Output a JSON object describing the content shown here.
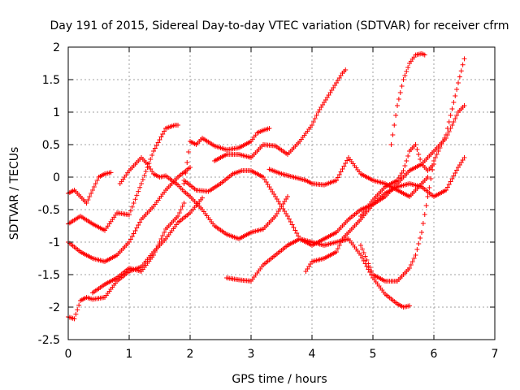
{
  "chart_data": {
    "type": "scatter",
    "title": "Day 191 of 2015, Sidereal Day-to-day VTEC variation (SDTVAR) for receiver cfrm",
    "xlabel": "GPS time / hours",
    "ylabel": "SDTVAR / TECUs",
    "xlim": [
      0,
      7
    ],
    "ylim": [
      -2.5,
      2
    ],
    "xticks": [
      "0",
      "1",
      "2",
      "3",
      "4",
      "5",
      "6",
      "7"
    ],
    "yticks": [
      "-2.5",
      "-2",
      "-1.5",
      "-1",
      "-0.5",
      "0",
      "0.5",
      "1",
      "1.5",
      "2"
    ],
    "xtick_values": [
      0,
      1,
      2,
      3,
      4,
      5,
      6,
      7
    ],
    "ytick_values": [
      -2.5,
      -2,
      -1.5,
      -1,
      -0.5,
      0,
      0.5,
      1,
      1.5,
      2
    ],
    "grid": true,
    "marker": "+",
    "color": "#ff0000",
    "series": [
      {
        "name": "s1",
        "x": [
          0.0,
          0.1,
          0.2,
          0.3,
          0.4,
          0.5,
          0.6,
          0.7
        ],
        "y": [
          -0.25,
          -0.2,
          -0.3,
          -0.4,
          -0.2,
          0.0,
          0.05,
          0.07
        ]
      },
      {
        "name": "s2",
        "x": [
          0.0,
          0.2,
          0.4,
          0.6,
          0.8,
          1.0,
          1.2,
          1.4,
          1.6,
          1.75,
          1.8
        ],
        "y": [
          -0.72,
          -0.6,
          -0.72,
          -0.82,
          -0.55,
          -0.58,
          -0.1,
          0.4,
          0.75,
          0.8,
          0.8
        ]
      },
      {
        "name": "s3",
        "x": [
          0.0,
          0.2,
          0.4,
          0.6,
          0.8,
          1.0,
          1.2,
          1.4,
          1.6,
          1.8,
          2.0
        ],
        "y": [
          -1.0,
          -1.15,
          -1.25,
          -1.3,
          -1.2,
          -1.0,
          -0.65,
          -0.45,
          -0.2,
          0.0,
          0.15
        ]
      },
      {
        "name": "s4",
        "x": [
          0.0,
          0.1,
          0.2,
          0.3,
          0.4,
          0.6,
          0.8,
          1.0,
          1.2,
          1.4,
          1.6,
          1.8,
          2.0,
          2.2
        ],
        "y": [
          -2.15,
          -2.18,
          -1.9,
          -1.85,
          -1.88,
          -1.85,
          -1.6,
          -1.45,
          -1.38,
          -1.15,
          -0.95,
          -0.7,
          -0.55,
          -0.32
        ]
      },
      {
        "name": "s5",
        "x": [
          0.4,
          0.6,
          0.8,
          1.0,
          1.2,
          1.4,
          1.6,
          1.8,
          1.9
        ],
        "y": [
          -1.78,
          -1.65,
          -1.55,
          -1.4,
          -1.45,
          -1.2,
          -0.8,
          -0.6,
          -0.4
        ]
      },
      {
        "name": "s6",
        "x": [
          0.85,
          1.0,
          1.2,
          1.3,
          1.4,
          1.5,
          1.6,
          1.7,
          1.8,
          1.9,
          2.0,
          2.2,
          2.4,
          2.6,
          2.8,
          3.0,
          3.2,
          3.4,
          3.6
        ],
        "y": [
          -0.1,
          0.1,
          0.3,
          0.2,
          0.05,
          0.0,
          0.02,
          -0.05,
          -0.12,
          -0.22,
          -0.3,
          -0.5,
          -0.75,
          -0.88,
          -0.95,
          -0.85,
          -0.8,
          -0.6,
          -0.3
        ]
      },
      {
        "name": "s7",
        "x": [
          1.9,
          2.0,
          2.1,
          2.2,
          2.4,
          2.6,
          2.8,
          3.0,
          3.1,
          3.2,
          3.3
        ],
        "y": [
          -0.1,
          0.55,
          0.5,
          0.6,
          0.48,
          0.42,
          0.45,
          0.55,
          0.68,
          0.72,
          0.75
        ]
      },
      {
        "name": "s8",
        "x": [
          1.9,
          2.1,
          2.3,
          2.5,
          2.7,
          2.85,
          3.0,
          3.2,
          3.4,
          3.6,
          3.8,
          4.0,
          4.2,
          4.4,
          4.6,
          4.8,
          5.0,
          5.2,
          5.4,
          5.5,
          5.6
        ],
        "y": [
          -0.05,
          -0.2,
          -0.22,
          -0.1,
          0.05,
          0.1,
          0.1,
          0.0,
          -0.3,
          -0.6,
          -0.95,
          -1.0,
          -1.05,
          -1.0,
          -0.95,
          -1.2,
          -1.55,
          -1.8,
          -1.95,
          -2.0,
          -1.98
        ]
      },
      {
        "name": "s9",
        "x": [
          2.4,
          2.6,
          2.8,
          3.0,
          3.2,
          3.4,
          3.6,
          3.8,
          4.0,
          4.1
        ],
        "y": [
          0.25,
          0.35,
          0.35,
          0.3,
          0.5,
          0.48,
          0.35,
          0.55,
          0.8,
          1.0
        ]
      },
      {
        "name": "s10",
        "x": [
          4.1,
          4.3,
          4.4,
          4.5,
          4.55
        ],
        "y": [
          1.0,
          1.3,
          1.45,
          1.6,
          1.65
        ]
      },
      {
        "name": "s11",
        "x": [
          2.6,
          2.8,
          3.0,
          3.2,
          3.4,
          3.6,
          3.8,
          4.0,
          4.2,
          4.4,
          4.6,
          4.8,
          5.0,
          5.2,
          5.4,
          5.6,
          5.8,
          6.0,
          6.2,
          6.4,
          6.5
        ],
        "y": [
          -1.55,
          -1.58,
          -1.6,
          -1.35,
          -1.2,
          -1.05,
          -0.95,
          -1.05,
          -0.95,
          -0.85,
          -0.65,
          -0.5,
          -0.42,
          -0.3,
          -0.1,
          0.1,
          0.2,
          0.4,
          0.6,
          1.0,
          1.1
        ]
      },
      {
        "name": "s12",
        "x": [
          3.3,
          3.5,
          3.7,
          3.9,
          4.0,
          4.2,
          4.4,
          4.6,
          4.8,
          5.0,
          5.2,
          5.4,
          5.6,
          5.8,
          5.9
        ],
        "y": [
          0.12,
          0.05,
          0.0,
          -0.05,
          -0.1,
          -0.12,
          -0.05,
          0.3,
          0.05,
          -0.05,
          -0.1,
          -0.2,
          -0.3,
          -0.1,
          0.0
        ]
      },
      {
        "name": "s13",
        "x": [
          3.9,
          4.0,
          4.2,
          4.4,
          4.5,
          4.6,
          4.8,
          5.0,
          5.2,
          5.4,
          5.6,
          5.8,
          6.0,
          6.2,
          6.4,
          6.5
        ],
        "y": [
          -1.45,
          -1.3,
          -1.25,
          -1.15,
          -0.95,
          -0.85,
          -0.65,
          -0.42,
          -0.25,
          -0.15,
          -0.1,
          -0.15,
          -0.3,
          -0.2,
          0.15,
          0.3
        ]
      },
      {
        "name": "s14",
        "x": [
          4.8,
          5.0,
          5.2,
          5.4,
          5.5,
          5.6,
          5.7,
          5.8,
          5.9,
          6.0
        ],
        "y": [
          -0.6,
          -0.35,
          -0.15,
          -0.05,
          0.1,
          0.4,
          0.5,
          0.2,
          0.1,
          0.2
        ]
      },
      {
        "name": "s15",
        "x": [
          4.8,
          5.0,
          5.2,
          5.4,
          5.6,
          5.7,
          5.8,
          5.9,
          6.0,
          6.1,
          6.2,
          6.3,
          6.4,
          6.5
        ],
        "y": [
          -1.05,
          -1.5,
          -1.6,
          -1.6,
          -1.4,
          -1.2,
          -0.85,
          -0.3,
          0.25,
          0.45,
          0.65,
          1.05,
          1.45,
          1.82
        ]
      },
      {
        "name": "s16",
        "x": [
          5.3,
          5.4,
          5.5,
          5.6,
          5.7,
          5.8,
          5.85
        ],
        "y": [
          0.5,
          1.1,
          1.5,
          1.75,
          1.88,
          1.9,
          1.88
        ]
      }
    ]
  }
}
